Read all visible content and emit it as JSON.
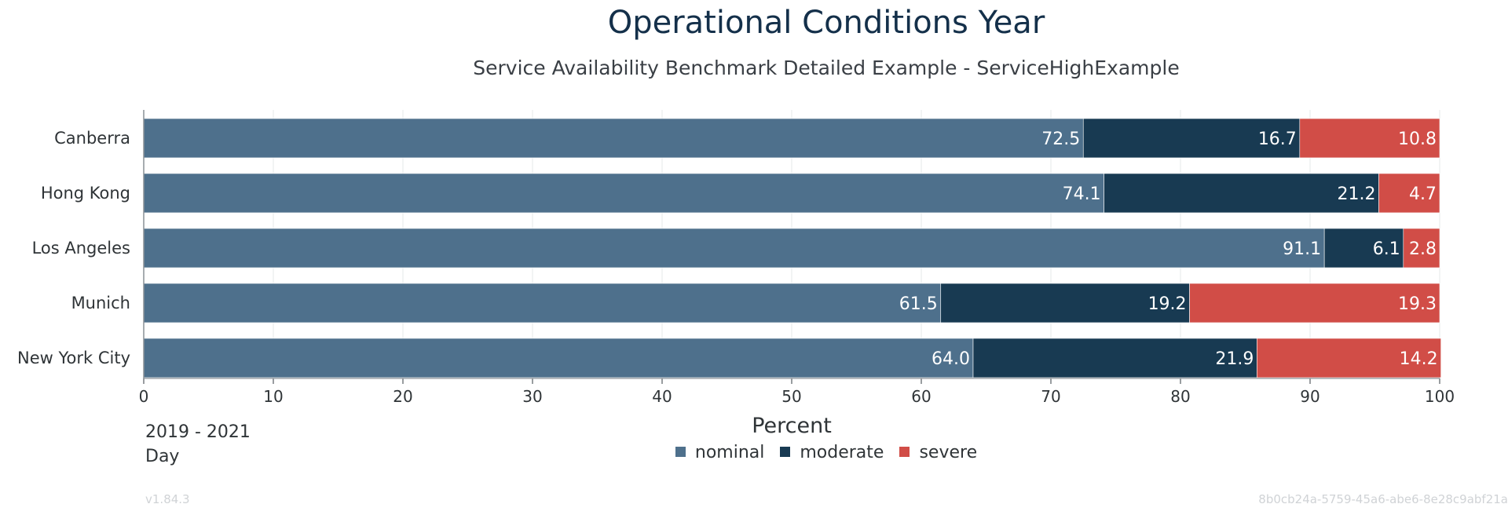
{
  "chart_data": {
    "type": "bar",
    "orientation": "horizontal",
    "stacked": true,
    "title": "Operational Conditions Year",
    "subtitle": "Service Availability Benchmark Detailed Example - ServiceHighExample",
    "xlabel": "Percent",
    "ylabel": "",
    "xlim": [
      0,
      100
    ],
    "xticks": [
      "0",
      "10",
      "20",
      "30",
      "40",
      "50",
      "60",
      "70",
      "80",
      "90",
      "100"
    ],
    "categories": [
      "Canberra",
      "Hong Kong",
      "Los Angeles",
      "Munich",
      "New York City"
    ],
    "series": [
      {
        "name": "nominal",
        "color": "#4e708c",
        "values": [
          72.5,
          74.1,
          91.1,
          61.5,
          64.0
        ],
        "labels": [
          "72.5",
          "74.1",
          "91.1",
          "61.5",
          "64.0"
        ]
      },
      {
        "name": "moderate",
        "color": "#183a52",
        "values": [
          16.7,
          21.2,
          6.1,
          19.2,
          21.9
        ],
        "labels": [
          "16.7",
          "21.2",
          "6.1",
          "19.2",
          "21.9"
        ]
      },
      {
        "name": "severe",
        "color": "#d14d47",
        "values": [
          10.8,
          4.7,
          2.8,
          19.3,
          14.2
        ],
        "labels": [
          "10.8",
          "4.7",
          "2.8",
          "19.3",
          "14.2"
        ]
      }
    ],
    "grid": true,
    "legend_position": "bottom-center"
  },
  "footer": {
    "period": "2019 - 2021",
    "granularity": "Day",
    "version": "v1.84.3",
    "uid": "8b0cb24a-5759-45a6-abe6-8e28c9abf21a"
  }
}
